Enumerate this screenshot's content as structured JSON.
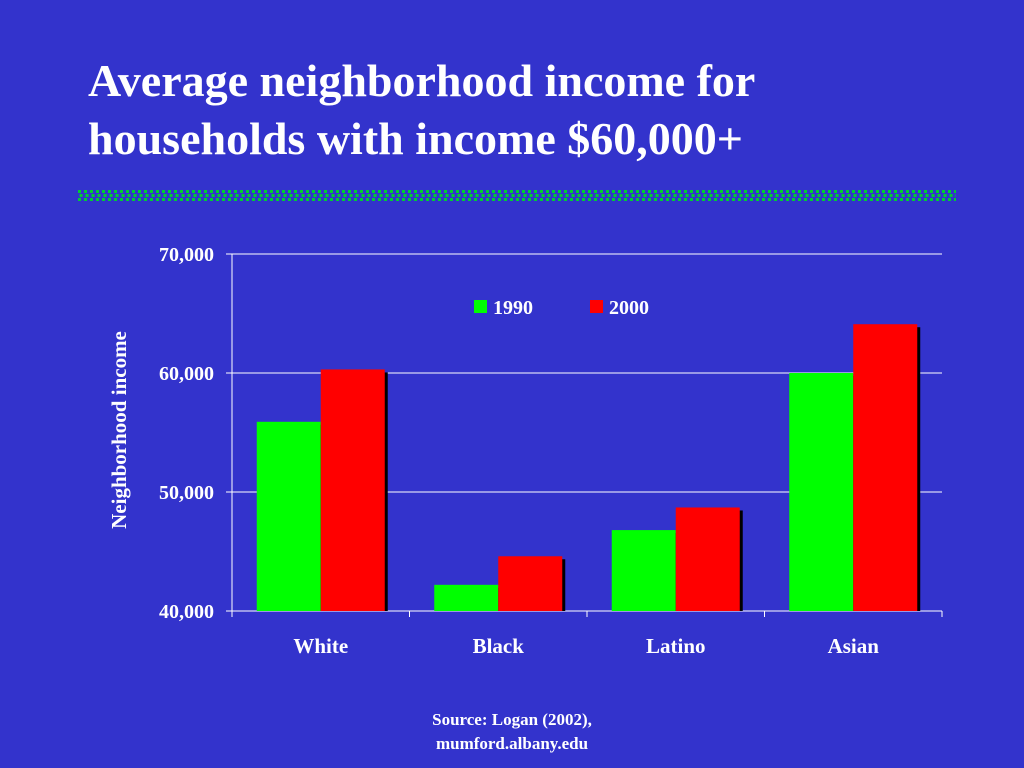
{
  "slide": {
    "title_lines": [
      "Average neighborhood income for",
      "households with income $60,000+"
    ],
    "source_lines": [
      "Source: Logan (2002),",
      "mumford.albany.edu"
    ]
  },
  "colors": {
    "background": "#3333cc",
    "series_1990": "#00ff00",
    "series_2000": "#ff0000",
    "divider": "#00cc33"
  },
  "chart_data": {
    "type": "bar",
    "title": "",
    "xlabel": "",
    "ylabel": "Neighborhood income",
    "categories": [
      "White",
      "Black",
      "Latino",
      "Asian"
    ],
    "series": [
      {
        "name": "1990",
        "values": [
          55900,
          42200,
          46800,
          60000
        ]
      },
      {
        "name": "2000",
        "values": [
          60300,
          44600,
          48700,
          64100
        ]
      }
    ],
    "ylim": [
      40000,
      70000
    ],
    "yticks": [
      40000,
      50000,
      60000,
      70000
    ],
    "ytick_labels": [
      "40,000",
      "50,000",
      "60,000",
      "70,000"
    ],
    "grid": true,
    "legend_position": "top-center"
  }
}
